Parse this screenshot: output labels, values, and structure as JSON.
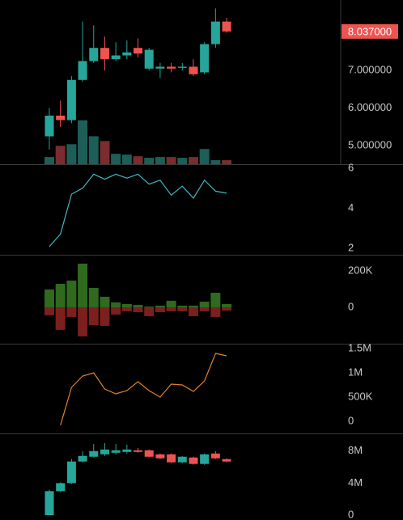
{
  "chart_data": [
    {
      "type": "candlestick",
      "open": [
        5.25,
        5.8,
        5.68,
        6.75,
        7.25,
        7.6,
        7.3,
        7.4,
        7.6,
        7.05,
        7.05,
        7.1,
        7.07,
        7.1,
        6.95,
        7.7,
        8.3
      ],
      "high": [
        6.0,
        6.2,
        6.85,
        8.3,
        8.2,
        7.9,
        7.75,
        7.8,
        7.85,
        7.6,
        7.2,
        7.2,
        7.2,
        7.3,
        7.75,
        8.65,
        8.4
      ],
      "low": [
        4.9,
        5.5,
        5.6,
        6.7,
        7.2,
        7.0,
        7.25,
        7.3,
        7.35,
        7.0,
        6.8,
        6.95,
        7.0,
        6.85,
        6.9,
        7.6,
        8.0
      ],
      "close": [
        5.8,
        5.68,
        6.75,
        7.25,
        7.6,
        7.3,
        7.4,
        7.48,
        7.45,
        7.55,
        7.1,
        7.05,
        7.1,
        6.9,
        7.7,
        8.3,
        8.037
      ],
      "volume": [
        90000,
        230000,
        250000,
        550000,
        350000,
        290000,
        130000,
        120000,
        100000,
        80000,
        90000,
        90000,
        80000,
        90000,
        190000,
        50000,
        50000
      ],
      "up_color": "#26a69a",
      "down_color": "#ef5350",
      "volume_up_color": "#1d5f58",
      "volume_down_color": "#7b2c2e",
      "ylim": [
        4.51,
        8.83
      ],
      "yticks": [
        {
          "value": 5,
          "label": "5.000000"
        },
        {
          "value": 6,
          "label": "6.000000"
        },
        {
          "value": 7,
          "label": "7.000000"
        }
      ],
      "last_price_label": "8.037000"
    },
    {
      "type": "line",
      "values": [
        2.08,
        2.7,
        4.7,
        5.0,
        5.7,
        5.45,
        5.7,
        5.5,
        5.7,
        5.2,
        5.4,
        4.65,
        5.1,
        4.5,
        5.4,
        4.85,
        4.75
      ],
      "color": "#3fb8c2",
      "ylim": [
        1.67,
        6.12
      ],
      "yticks": [
        2,
        4,
        6
      ]
    },
    {
      "type": "bar",
      "series": [
        {
          "color": "#2f6a1e",
          "values": [
            98000,
            129000,
            147000,
            240000,
            107000,
            58000,
            27000,
            18000,
            13000,
            4000,
            9000,
            36000,
            9000,
            9000,
            31000,
            80000,
            18000
          ]
        },
        {
          "color": "#7b1f1f",
          "values": [
            -44000,
            -124000,
            -53000,
            -160000,
            -98000,
            -102000,
            -40000,
            -22000,
            -27000,
            -49000,
            -27000,
            -22000,
            -22000,
            -49000,
            -22000,
            -53000,
            -18000
          ]
        }
      ],
      "ylim": [
        -200000,
        280000
      ],
      "yticks": [
        0,
        {
          "value": 200000,
          "label": "200K"
        }
      ]
    },
    {
      "type": "line",
      "values": [
        null,
        -80000,
        700000,
        933000,
        1000000,
        667000,
        567000,
        633000,
        817000,
        633000,
        500000,
        767000,
        750000,
        617000,
        833000,
        1400000,
        1350000
      ],
      "color": "#e0822a",
      "ylim": [
        -250000,
        1567000
      ],
      "yticks": [
        0,
        {
          "value": 500000,
          "label": "500K"
        },
        {
          "value": 1000000,
          "label": "1M"
        },
        {
          "value": 1500000,
          "label": "1.5M"
        }
      ]
    },
    {
      "type": "candlestick",
      "open": [
        0,
        3000000,
        4000000,
        6700000,
        7300000,
        7600000,
        7800000,
        7900000,
        8100000,
        8100000,
        7600000,
        7600000,
        6600000,
        7200000,
        6400000,
        7700000,
        7000000
      ],
      "high": [
        3200000,
        4100000,
        7000000,
        8000000,
        8900000,
        9000000,
        8900000,
        8800000,
        8400000,
        8200000,
        7700000,
        7700000,
        7400000,
        7300000,
        7700000,
        8000000,
        7100000
      ],
      "low": [
        0,
        2900000,
        3900000,
        6600000,
        7200000,
        7400000,
        7600000,
        7700000,
        7800000,
        7200000,
        7000000,
        6500000,
        6500000,
        6300000,
        6300000,
        7000000,
        6600000
      ],
      "close": [
        3000000,
        4000000,
        6700000,
        7400000,
        8000000,
        8200000,
        8100000,
        8200000,
        7900000,
        7300000,
        7100000,
        6600000,
        7300000,
        6400000,
        7600000,
        7100000,
        6700000
      ],
      "up_color": "#26a69a",
      "down_color": "#ef5350",
      "ylim": [
        -600000,
        10000000
      ],
      "yticks": [
        0,
        {
          "value": 4000000,
          "label": "4M"
        },
        {
          "value": 8000000,
          "label": "8M"
        }
      ]
    }
  ]
}
